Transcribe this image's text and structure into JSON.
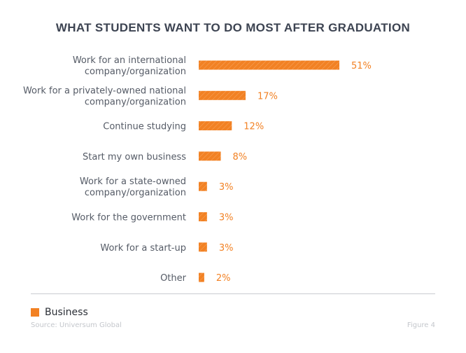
{
  "title": "WHAT STUDENTS WANT TO DO MOST AFTER GRADUATION",
  "legend": {
    "label": "Business",
    "color": "#f28123"
  },
  "source": "Source: Universum Global",
  "figure_label": "Figure 4",
  "chart_data": {
    "type": "bar",
    "orientation": "horizontal",
    "title": "WHAT STUDENTS WANT TO DO MOST AFTER GRADUATION",
    "categories": [
      [
        "Work for an international",
        "company/organization"
      ],
      [
        "Work for a privately-owned national",
        "company/organization"
      ],
      [
        "Continue studying"
      ],
      [
        "Start my own business"
      ],
      [
        "Work for a state-owned",
        "company/organization"
      ],
      [
        "Work for the government"
      ],
      [
        "Work for a start-up"
      ],
      [
        "Other"
      ]
    ],
    "series": [
      {
        "name": "Business",
        "values": [
          51,
          17,
          12,
          8,
          3,
          3,
          3,
          2
        ],
        "labels": [
          "51%",
          "17%",
          "12%",
          "8%",
          "3%",
          "3%",
          "3%",
          "2%"
        ],
        "color": "#f28123"
      }
    ],
    "xlim": [
      0,
      51
    ],
    "grid": false,
    "legend_position": "bottom-left"
  }
}
